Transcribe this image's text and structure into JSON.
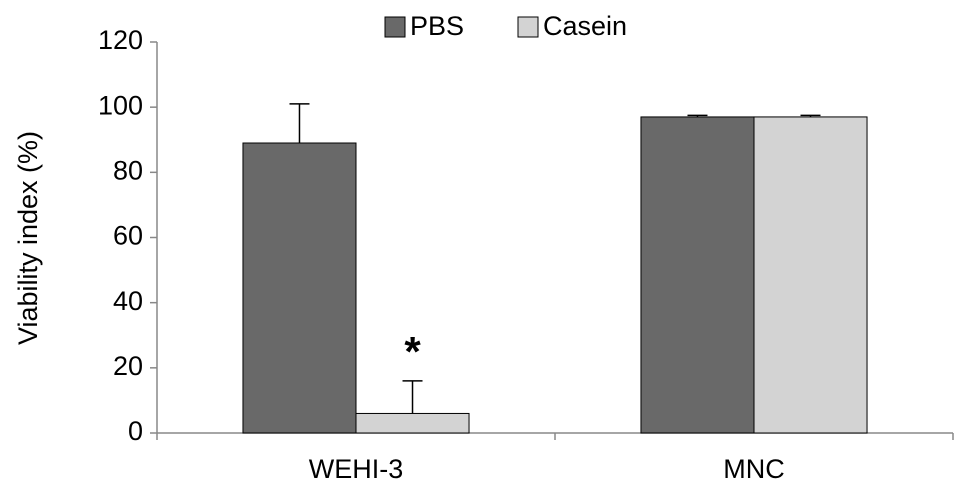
{
  "chart_data": {
    "type": "bar",
    "y_label": "Viability index (%)",
    "categories": [
      "WEHI-3",
      "MNC"
    ],
    "series": [
      {
        "name": "PBS",
        "color": "#696969",
        "values": [
          89,
          97
        ],
        "errors": [
          12,
          0.5
        ]
      },
      {
        "name": "Casein",
        "color": "#d3d3d3",
        "values": [
          6,
          97
        ],
        "errors": [
          10,
          0.5
        ]
      }
    ],
    "annotation": "*",
    "ylim": [
      0,
      120
    ],
    "yticks": [
      0,
      20,
      40,
      60,
      80,
      100,
      120
    ],
    "legend": "top"
  }
}
